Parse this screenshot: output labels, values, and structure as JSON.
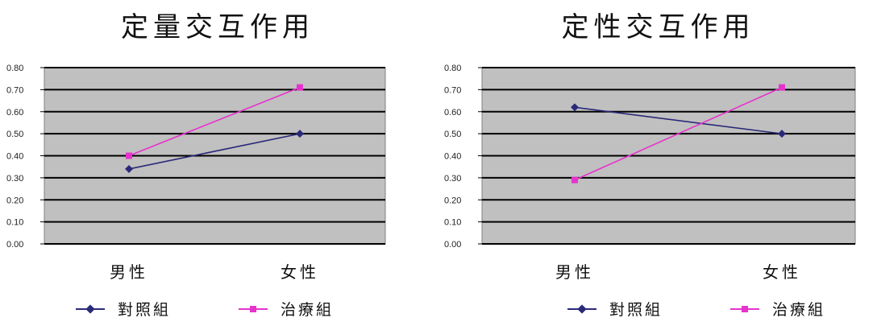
{
  "chart_data": [
    {
      "type": "line",
      "title": "定量交互作用",
      "categories": [
        "男性",
        "女性"
      ],
      "ylim": [
        0,
        0.8
      ],
      "yticks": [
        "0.00",
        "0.10",
        "0.20",
        "0.30",
        "0.40",
        "0.50",
        "0.60",
        "0.70",
        "0.80"
      ],
      "grid": true,
      "legend_position": "bottom",
      "series": [
        {
          "name": "對照組",
          "values": [
            0.34,
            0.5
          ],
          "color": "#2a2a7a"
        },
        {
          "name": "治療組",
          "values": [
            0.4,
            0.71
          ],
          "color": "#e633cc"
        }
      ]
    },
    {
      "type": "line",
      "title": "定性交互作用",
      "categories": [
        "男性",
        "女性"
      ],
      "ylim": [
        0,
        0.8
      ],
      "yticks": [
        "0.00",
        "0.10",
        "0.20",
        "0.30",
        "0.40",
        "0.50",
        "0.60",
        "0.70",
        "0.80"
      ],
      "grid": true,
      "legend_position": "bottom",
      "series": [
        {
          "name": "對照組",
          "values": [
            0.62,
            0.5
          ],
          "color": "#2a2a7a"
        },
        {
          "name": "治療組",
          "values": [
            0.29,
            0.71
          ],
          "color": "#e633cc"
        }
      ]
    }
  ],
  "colors": {
    "plot_background": "#c0c0c0",
    "gridline": "#000000"
  }
}
